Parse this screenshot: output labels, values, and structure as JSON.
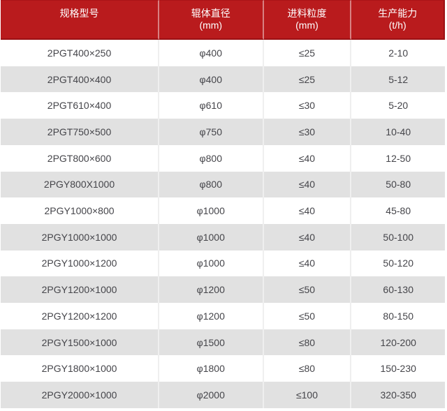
{
  "chart_data": {
    "type": "table",
    "columns": [
      {
        "label": "规格型号",
        "unit": ""
      },
      {
        "label": "辊体直径",
        "unit": "(mm)"
      },
      {
        "label": "进料粒度",
        "unit": "(mm)"
      },
      {
        "label": "生产能力",
        "unit": "(t/h)"
      }
    ],
    "rows": [
      [
        "2PGT400×250",
        "φ400",
        "≤25",
        "2-10"
      ],
      [
        "2PGT400×400",
        "φ400",
        "≤25",
        "5-12"
      ],
      [
        "2PGT610×400",
        "φ610",
        "≤30",
        "5-20"
      ],
      [
        "2PGT750×500",
        "φ750",
        "≤30",
        "10-40"
      ],
      [
        "2PGT800×600",
        "φ800",
        "≤40",
        "12-50"
      ],
      [
        "2PGY800X1000",
        "φ800",
        "≤40",
        "50-80"
      ],
      [
        "2PGY1000×800",
        "φ1000",
        "≤40",
        "45-80"
      ],
      [
        "2PGY1000×1000",
        "φ1000",
        "≤40",
        "50-100"
      ],
      [
        "2PGY1000×1200",
        "φ1000",
        "≤40",
        "50-120"
      ],
      [
        "2PGY1200×1000",
        "φ1200",
        "≤50",
        "60-130"
      ],
      [
        "2PGY1200×1200",
        "φ1200",
        "≤50",
        "80-150"
      ],
      [
        "2PGY1500×1000",
        "φ1500",
        "≤80",
        "120-200"
      ],
      [
        "2PGY1800×1000",
        "φ1800",
        "≤80",
        "150-230"
      ],
      [
        "2PGY2000×1000",
        "φ2000",
        "≤100",
        "320-350"
      ]
    ],
    "layout": {
      "header_rows": 1,
      "body_rows": 14,
      "grid": "column dividers only, alternating row shading",
      "legend": "none"
    },
    "colors": {
      "header_bg": "#b91b1d",
      "header_border_dark": "#9a1114",
      "header_divider": "rgba(255,255,255,0.45)",
      "header_text": "#ffffff",
      "row_bg": "#ffffff",
      "row_alt_bg": "#e1e1e1",
      "column_divider": "#efefef",
      "body_text": "#45454a"
    }
  }
}
